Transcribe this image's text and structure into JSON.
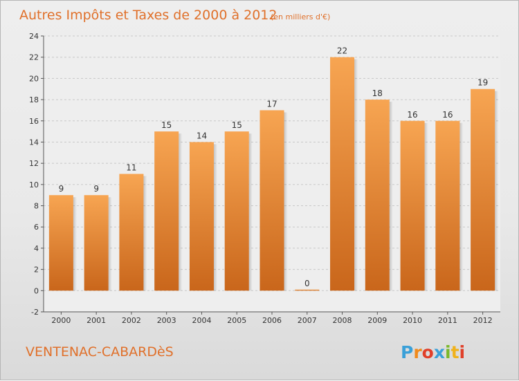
{
  "chart_data": {
    "type": "bar",
    "title": "Autres Impôts et Taxes de 2000 à 2012",
    "subtitle": "(en milliers d'€)",
    "categories": [
      "2000",
      "2001",
      "2002",
      "2003",
      "2004",
      "2005",
      "2006",
      "2007",
      "2008",
      "2009",
      "2010",
      "2011",
      "2012"
    ],
    "values": [
      9,
      9,
      11,
      15,
      14,
      15,
      17,
      0,
      22,
      18,
      16,
      16,
      19
    ],
    "ylim": [
      -2,
      24
    ],
    "yticks": [
      -2,
      0,
      2,
      4,
      6,
      8,
      10,
      12,
      14,
      16,
      18,
      20,
      22,
      24
    ],
    "grid": true,
    "bar_color_top": "#f7a552",
    "bar_color_bottom": "#c9661b",
    "accent_color": "#e0702a"
  },
  "footer": {
    "commune": "VENTENAC-CABARDèS",
    "brand": "Proxiti"
  }
}
